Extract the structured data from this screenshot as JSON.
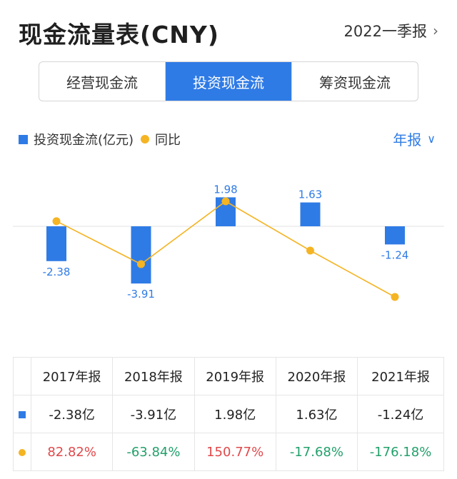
{
  "header": {
    "title": "现金流量表(CNY)",
    "period": "2022一季报",
    "period_chevron": "chevron-right-icon"
  },
  "tabs": [
    {
      "label": "经营现金流",
      "active": false
    },
    {
      "label": "投资现金流",
      "active": true
    },
    {
      "label": "筹资现金流",
      "active": false
    }
  ],
  "legend": {
    "series1": "投资现金流(亿元)",
    "series2": "同比"
  },
  "frequency": {
    "label": "年报",
    "chevron": "chevron-down-icon"
  },
  "colors": {
    "accent": "#2f7be6",
    "yoy_line": "#f5b423",
    "positive": "#e0484a",
    "negative": "#22a06b"
  },
  "chart_data": {
    "type": "bar",
    "categories": [
      "2017年报",
      "2018年报",
      "2019年报",
      "2020年报",
      "2021年报"
    ],
    "series": [
      {
        "name": "投资现金流(亿元)",
        "type": "bar",
        "values": [
          -2.38,
          -3.91,
          1.98,
          1.63,
          -1.24
        ],
        "labels": [
          "-2.38",
          "-3.91",
          "1.98",
          "1.63",
          "-1.24"
        ]
      },
      {
        "name": "同比",
        "type": "line",
        "values": [
          82.82,
          -63.84,
          150.77,
          -17.68,
          -176.18
        ]
      }
    ]
  },
  "table": {
    "headers": [
      "2017年报",
      "2018年报",
      "2019年报",
      "2020年报",
      "2021年报"
    ],
    "row_values": [
      "-2.38亿",
      "-3.91亿",
      "1.98亿",
      "1.63亿",
      "-1.24亿"
    ],
    "row_yoy": [
      "82.82%",
      "-63.84%",
      "150.77%",
      "-17.68%",
      "-176.18%"
    ]
  }
}
